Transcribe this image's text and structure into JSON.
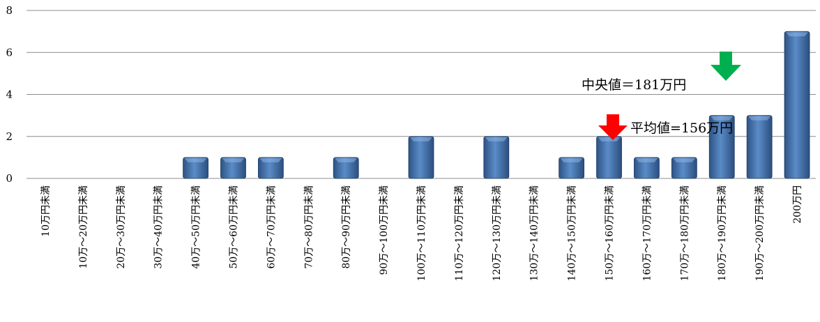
{
  "chart_data": {
    "type": "bar",
    "title": "",
    "xlabel": "",
    "ylabel": "",
    "ylim": [
      0,
      8
    ],
    "yticks": [
      0,
      2,
      4,
      6,
      8
    ],
    "grid": true,
    "categories": [
      "10万円未満",
      "10万〜20万円未満",
      "20万〜30万円未満",
      "30万〜40万円未満",
      "40万〜50万円未満",
      "50万〜60万円未満",
      "60万〜70万円未満",
      "70万〜80万円未満",
      "80万〜90万円未満",
      "90万〜100万円未満",
      "100万〜110万円未満",
      "110万〜120万円未満",
      "120万〜130万円未満",
      "130万〜140万円未満",
      "140万〜150万円未満",
      "150万〜160万円未満",
      "160万〜170万円未満",
      "170万〜180万円未満",
      "180万〜190万円未満",
      "190万〜200万円未満",
      "200万円"
    ],
    "values": [
      0,
      0,
      0,
      0,
      1,
      1,
      1,
      0,
      1,
      0,
      2,
      0,
      2,
      0,
      1,
      2,
      1,
      1,
      3,
      3,
      7
    ],
    "bar_color": "#4a78b4",
    "annotations": [
      {
        "text": "中央値＝181万円",
        "arrow_color": "#00b050",
        "category_index": 18
      },
      {
        "text": "平均値=156万円",
        "arrow_color": "#ff0000",
        "category_index": 15
      }
    ]
  }
}
